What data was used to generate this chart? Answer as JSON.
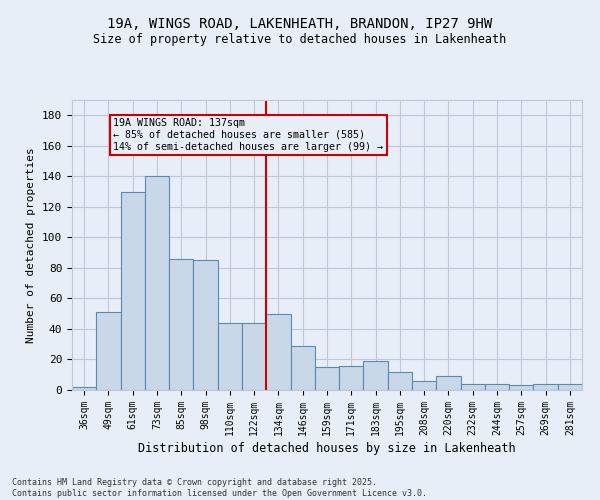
{
  "title": "19A, WINGS ROAD, LAKENHEATH, BRANDON, IP27 9HW",
  "subtitle": "Size of property relative to detached houses in Lakenheath",
  "xlabel": "Distribution of detached houses by size in Lakenheath",
  "ylabel": "Number of detached properties",
  "categories": [
    "36sqm",
    "49sqm",
    "61sqm",
    "73sqm",
    "85sqm",
    "98sqm",
    "110sqm",
    "122sqm",
    "134sqm",
    "146sqm",
    "159sqm",
    "171sqm",
    "183sqm",
    "195sqm",
    "208sqm",
    "220sqm",
    "232sqm",
    "244sqm",
    "257sqm",
    "269sqm",
    "281sqm"
  ],
  "values": [
    2,
    51,
    130,
    140,
    86,
    85,
    44,
    44,
    50,
    29,
    15,
    16,
    19,
    12,
    6,
    9,
    4,
    4,
    3,
    4,
    4
  ],
  "bar_color": "#c8d8e8",
  "bar_edge_color": "#5a8ab0",
  "vline_idx": 8,
  "annotation_title": "19A WINGS ROAD: 137sqm",
  "annotation_line1": "← 85% of detached houses are smaller (585)",
  "annotation_line2": "14% of semi-detached houses are larger (99) →",
  "annotation_box_color": "#cc0000",
  "ylim": [
    0,
    190
  ],
  "yticks": [
    0,
    20,
    40,
    60,
    80,
    100,
    120,
    140,
    160,
    180
  ],
  "grid_color": "#c0c8d8",
  "bg_color": "#e8eef8",
  "footer1": "Contains HM Land Registry data © Crown copyright and database right 2025.",
  "footer2": "Contains public sector information licensed under the Open Government Licence v3.0."
}
